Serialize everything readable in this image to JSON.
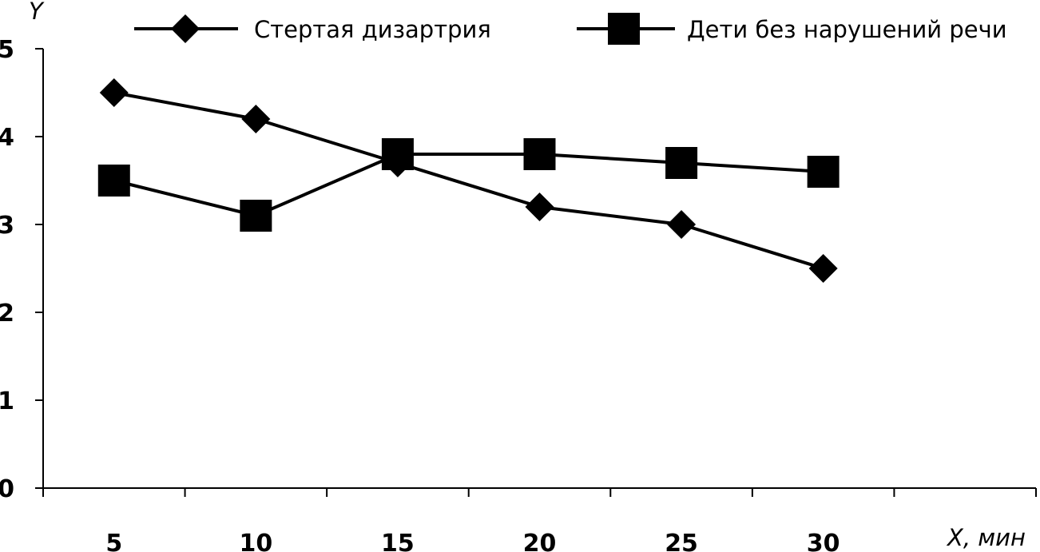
{
  "chart_data": {
    "type": "line",
    "categories": [
      "5",
      "10",
      "15",
      "20",
      "25",
      "30"
    ],
    "x": [
      5,
      10,
      15,
      20,
      25,
      30
    ],
    "series": [
      {
        "name": "Стертая дизартрия",
        "marker": "diamond",
        "values": [
          4.5,
          4.2,
          3.7,
          3.2,
          3.0,
          2.5
        ]
      },
      {
        "name": "Дети без нарушений речи",
        "marker": "square",
        "values": [
          3.5,
          3.1,
          3.8,
          3.8,
          3.7,
          3.6
        ]
      }
    ],
    "xlabel": "X, мин",
    "ylabel": "Y",
    "ylim": [
      0,
      5
    ],
    "yticks": [
      "0",
      "1",
      "2",
      "3",
      "4",
      "5"
    ],
    "grid": false,
    "legend_position": "top",
    "colors": {
      "line": "#000000",
      "marker": "#000000",
      "background": "#ffffff"
    }
  }
}
